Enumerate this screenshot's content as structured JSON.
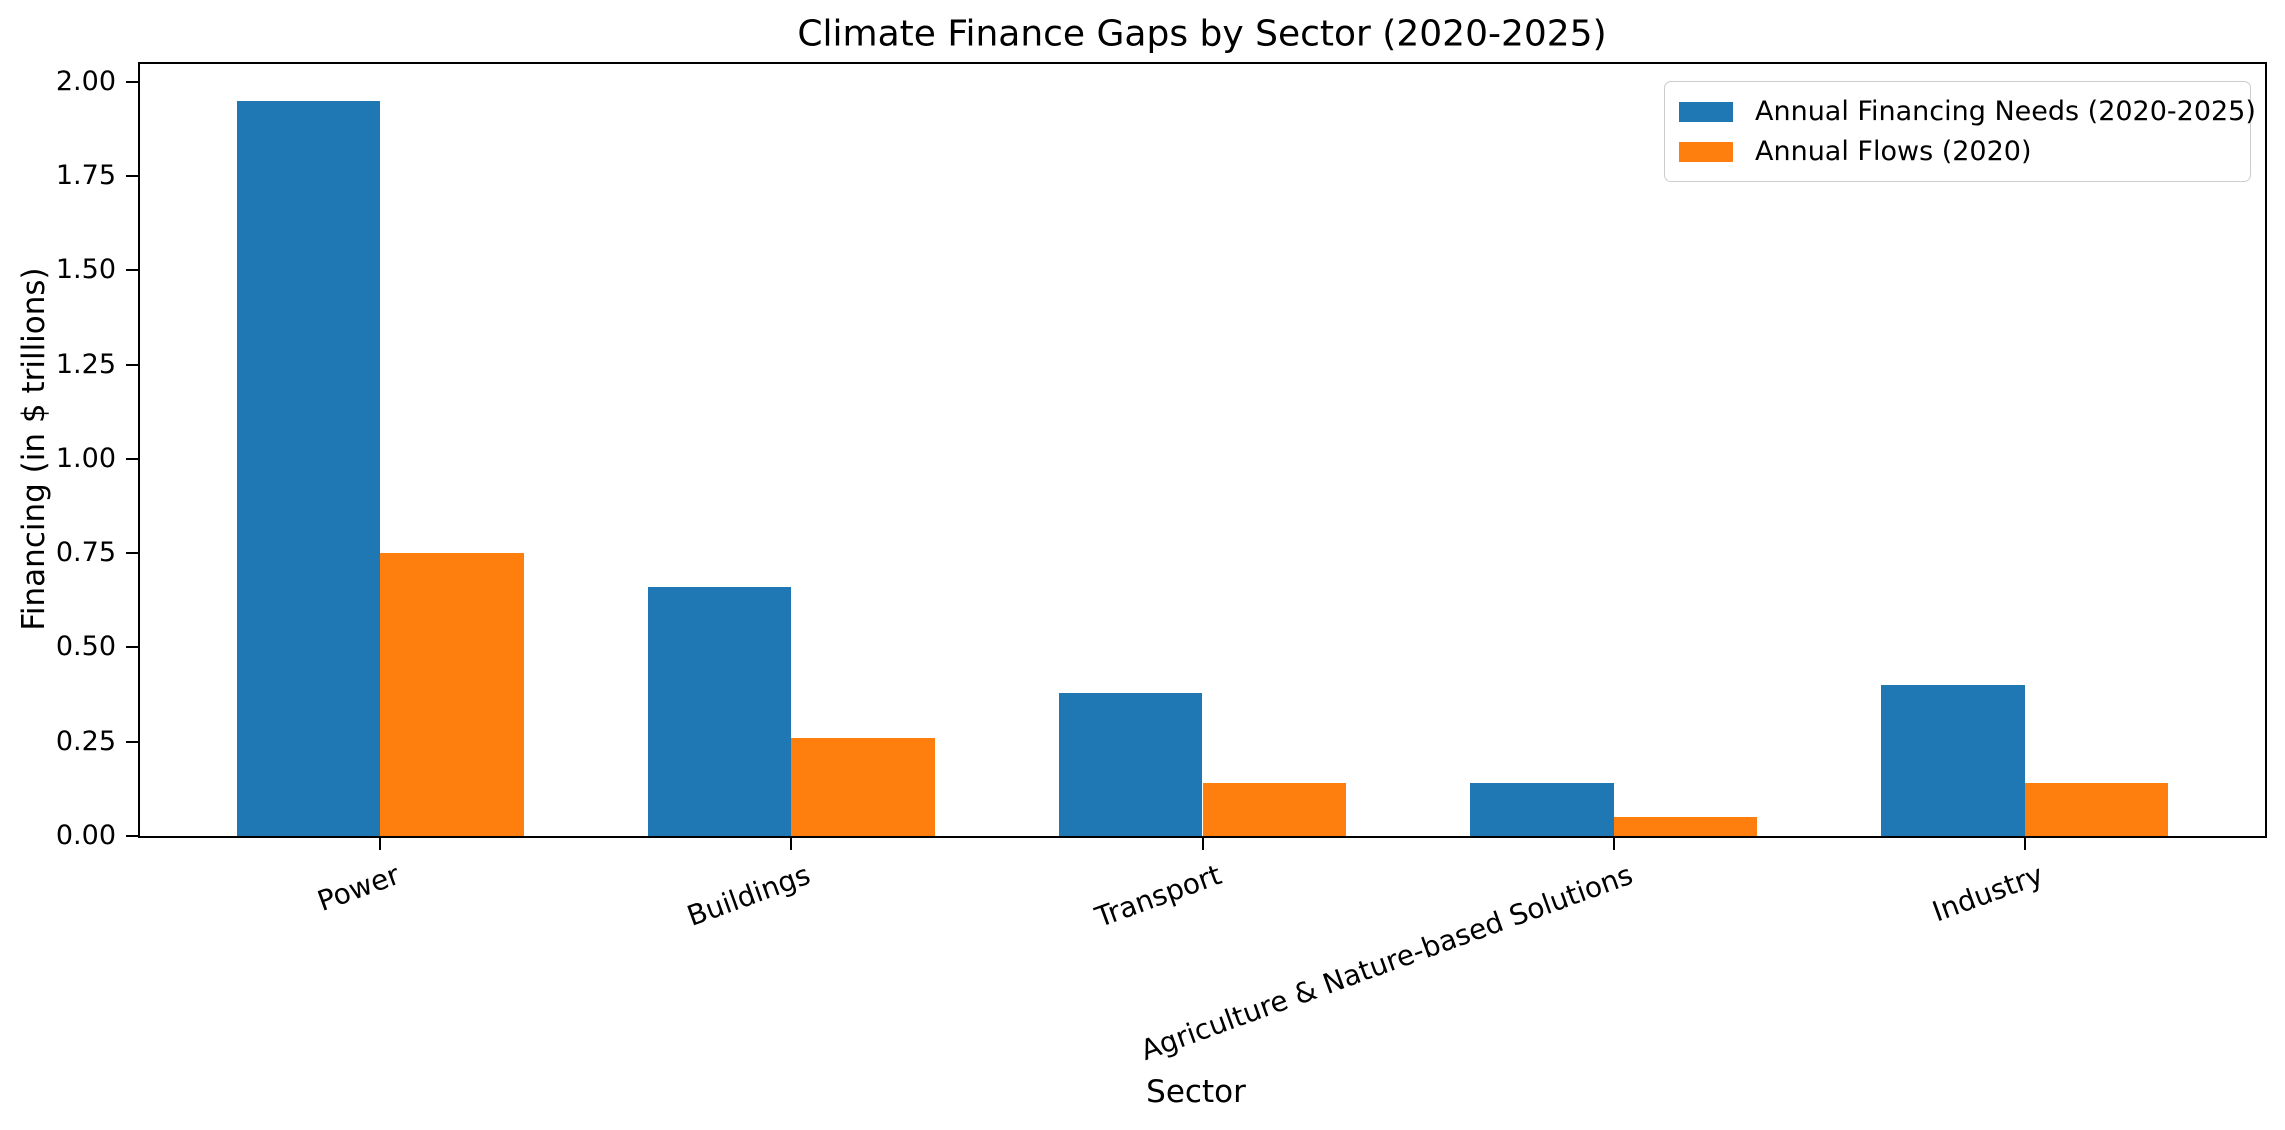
{
  "chart_data": {
    "type": "bar",
    "title": "Climate Finance Gaps by Sector (2020-2025)",
    "xlabel": "Sector",
    "ylabel": "Financing (in $ trillions)",
    "categories": [
      "Power",
      "Buildings",
      "Transport",
      "Agriculture & Nature-based Solutions",
      "Industry"
    ],
    "series": [
      {
        "name": "Annual Financing Needs (2020-2025)",
        "color": "#1f77b4",
        "values": [
          1.95,
          0.66,
          0.38,
          0.14,
          0.4
        ]
      },
      {
        "name": "Annual Flows (2020)",
        "color": "#ff7f0e",
        "values": [
          0.75,
          0.26,
          0.14,
          0.05,
          0.14
        ]
      }
    ],
    "ylim": [
      0,
      2.0475
    ],
    "yticks": [
      "0.00",
      "0.25",
      "0.50",
      "0.75",
      "1.00",
      "1.25",
      "1.50",
      "1.75",
      "2.00"
    ],
    "bar_width_fraction": 0.35,
    "legend_position": "upper right",
    "grid": false
  }
}
